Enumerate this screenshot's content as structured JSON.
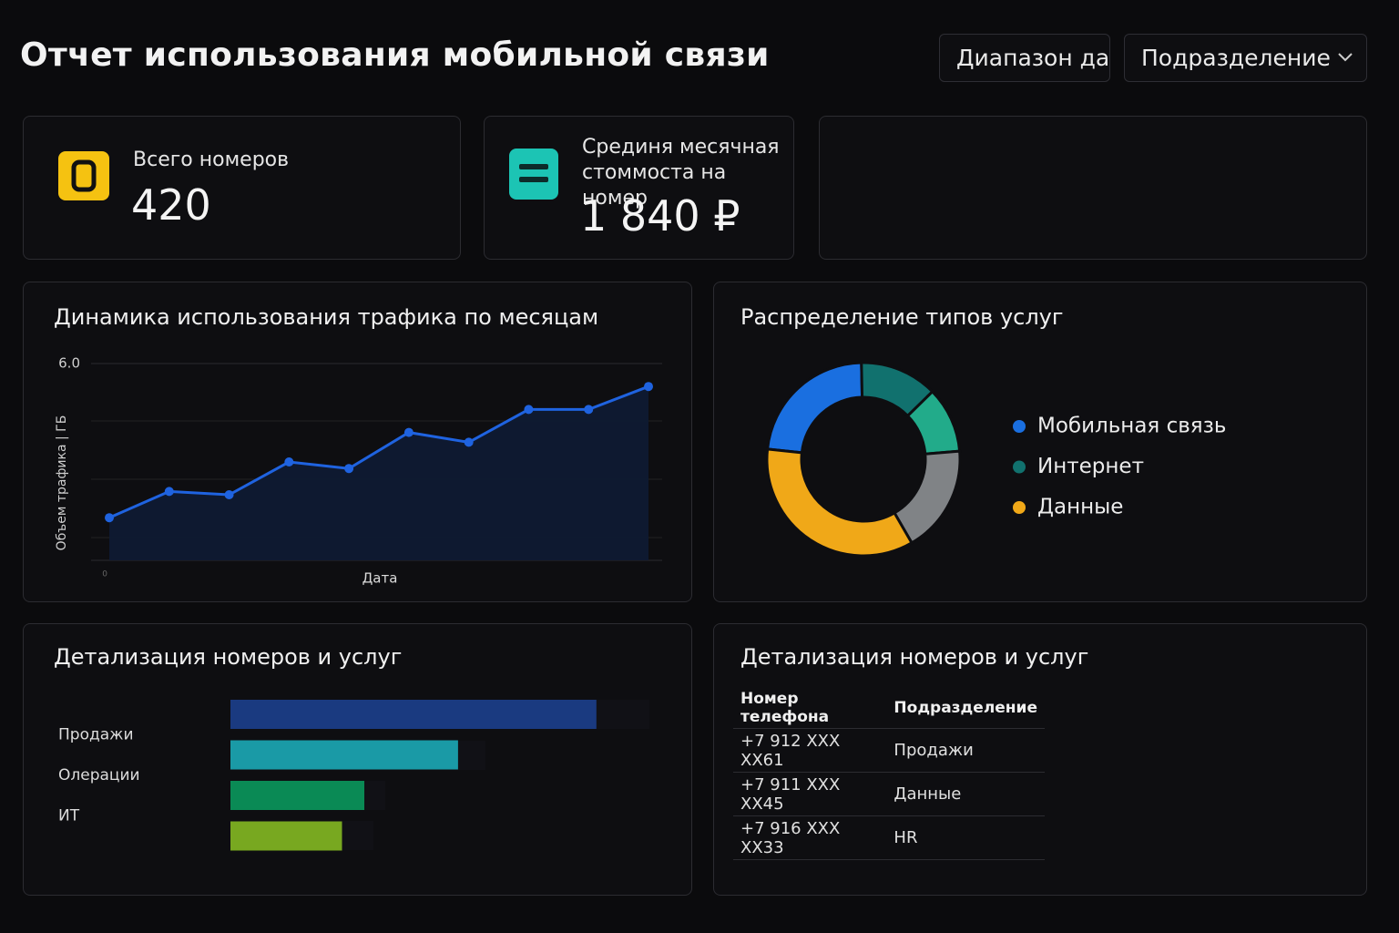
{
  "header": {
    "title": "Отчет использования мобильной связи",
    "date_range": "Диапазон дат",
    "department": "Подразделение"
  },
  "kpis": [
    {
      "label": "Всего номеров",
      "value": "420"
    },
    {
      "label": "Срединя месячная стоммоста на номер",
      "value": "1 840 ₽"
    }
  ],
  "line_chart": {
    "type": "line",
    "title": "Динамика использования трафика по месяцам",
    "y_label": "Объем трафика | ГБ",
    "x_label": "Дата",
    "categories": [
      null,
      null,
      null,
      null,
      null,
      null,
      null,
      null,
      null,
      null
    ],
    "values": [
      1.3,
      2.1,
      2.0,
      3.0,
      2.8,
      3.9,
      3.6,
      4.6,
      4.6,
      5.3
    ],
    "color": "#1f63e0",
    "ylim": [
      0,
      6
    ],
    "yticks": [
      0,
      {
        "value": 6,
        "label": "6.0"
      }
    ]
  },
  "pie_chart": {
    "type": "pie",
    "title": "Распределение типов услуг",
    "categories": [
      "Мобильная связь",
      "Интернет",
      null,
      null,
      "Данные"
    ],
    "values": [
      23,
      13,
      11,
      18,
      35
    ],
    "colors": [
      "#1a6fe0",
      "#11716e",
      "#22ab8a",
      "#808386",
      "#f0a818"
    ]
  },
  "bar_chart": {
    "type": "bar",
    "title": "Детализация номеров и услуг",
    "categories": [
      null,
      "Продажи",
      "Олерации",
      "ИТ"
    ],
    "values": [
      82,
      51,
      30,
      25
    ],
    "colors": [
      "#1a3a80",
      "#1a9aa6",
      "#0a8a55",
      "#78a820"
    ],
    "xlim": [
      0,
      100
    ]
  },
  "table": {
    "title": "Детализация номеров и услуг",
    "columns": [
      "Номер телефона",
      "Подразделение"
    ],
    "rows": [
      [
        "+7 912 XXX XX61",
        "Продажи"
      ],
      [
        "+7 911 XXX XX45",
        "Данные"
      ],
      [
        "+7 916 XXX XX33",
        "HR"
      ]
    ]
  }
}
